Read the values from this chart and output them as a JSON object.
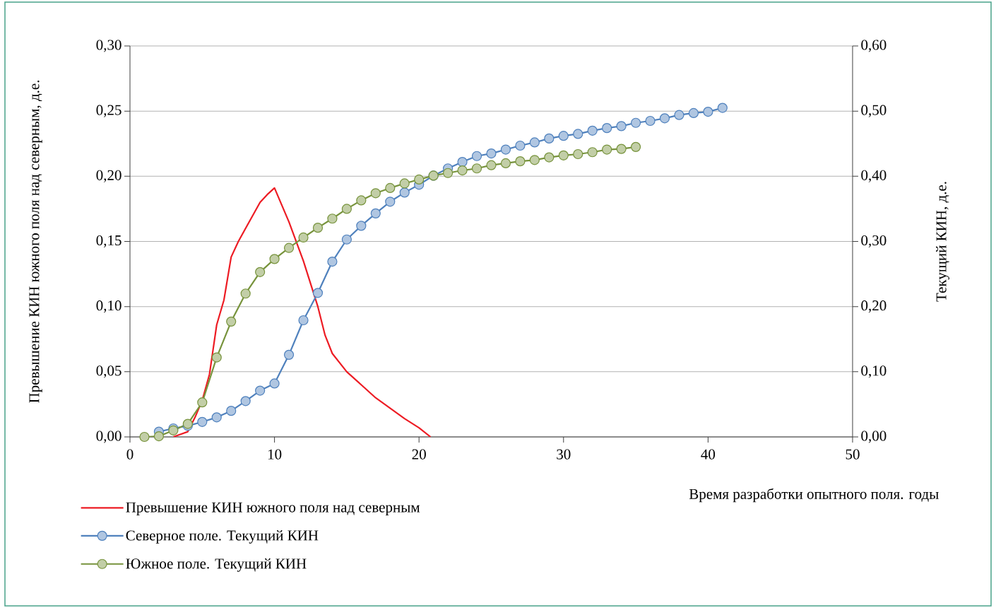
{
  "chart_data": {
    "type": "line",
    "xlabel": "Время разработки опытного поля. годы",
    "ylabel": "Превышение КИН южного поля над северным, д.е.",
    "y2label": "Текущий КИН, д.е.",
    "xlim": [
      0,
      50
    ],
    "xticks": [
      0,
      10,
      20,
      30,
      40,
      50
    ],
    "ylim": [
      0,
      0.3
    ],
    "yticks": [
      {
        "value": 0,
        "label": "0,00"
      },
      {
        "value": 0.05,
        "label": "0,05"
      },
      {
        "value": 0.1,
        "label": "0,10"
      },
      {
        "value": 0.15,
        "label": "0,15"
      },
      {
        "value": 0.2,
        "label": "0,20"
      },
      {
        "value": 0.25,
        "label": "0,25"
      },
      {
        "value": 0.3,
        "label": "0,30"
      }
    ],
    "y2lim": [
      0,
      0.6
    ],
    "y2ticks": [
      {
        "value": 0,
        "label": "0,00"
      },
      {
        "value": 0.1,
        "label": "0,10"
      },
      {
        "value": 0.2,
        "label": "0,20"
      },
      {
        "value": 0.3,
        "label": "0,30"
      },
      {
        "value": 0.4,
        "label": "0,40"
      },
      {
        "value": 0.5,
        "label": "0,50"
      },
      {
        "value": 0.6,
        "label": "0,60"
      }
    ],
    "grid": "y",
    "legend": "bottom left",
    "series": [
      {
        "name": "Превышение КИН южного поля над северным",
        "color": "#ed1c24",
        "marker": "none",
        "x": [
          3,
          4,
          4.5,
          5,
          5.5,
          6,
          6.5,
          7,
          7.5,
          8,
          9,
          9.5,
          10,
          10.5,
          11,
          11.5,
          12,
          13,
          13.5,
          14,
          15,
          16,
          17,
          18,
          19,
          20,
          20.8
        ],
        "values": [
          0,
          0.004,
          0.015,
          0.028,
          0.048,
          0.086,
          0.105,
          0.138,
          0.15,
          0.16,
          0.18,
          0.186,
          0.191,
          0.178,
          0.165,
          0.15,
          0.135,
          0.1,
          0.078,
          0.064,
          0.05,
          0.04,
          0.03,
          0.022,
          0.014,
          0.007,
          0
        ]
      },
      {
        "name": "Северное поле. Текущий КИН",
        "color": "#4f81bd",
        "marker": "circle",
        "axis": "y2",
        "x": [
          2,
          3,
          4,
          5,
          6,
          7,
          8,
          9,
          10,
          11,
          12,
          13,
          14,
          15,
          16,
          17,
          18,
          19,
          20,
          21,
          22,
          23,
          24,
          25,
          26,
          27,
          28,
          29,
          30,
          31,
          32,
          33,
          34,
          35,
          36,
          37,
          38,
          39,
          40,
          41
        ],
        "values": [
          0.008,
          0.013,
          0.017,
          0.023,
          0.03,
          0.04,
          0.055,
          0.071,
          0.082,
          0.126,
          0.179,
          0.221,
          0.269,
          0.303,
          0.324,
          0.343,
          0.361,
          0.375,
          0.387,
          0.401,
          0.412,
          0.422,
          0.431,
          0.435,
          0.441,
          0.447,
          0.452,
          0.458,
          0.462,
          0.465,
          0.47,
          0.474,
          0.477,
          0.482,
          0.485,
          0.489,
          0.494,
          0.497,
          0.499,
          0.505
        ]
      },
      {
        "name": "Южное поле. Текущий КИН",
        "color": "#77933c",
        "marker": "circle",
        "axis": "y2",
        "x": [
          1,
          2,
          3,
          4,
          5,
          6,
          7,
          8,
          9,
          10,
          11,
          12,
          13,
          14,
          15,
          16,
          17,
          18,
          19,
          20,
          21,
          22,
          23,
          24,
          25,
          26,
          27,
          28,
          29,
          30,
          31,
          32,
          33,
          34,
          35
        ],
        "values": [
          0,
          0.001,
          0.01,
          0.02,
          0.053,
          0.122,
          0.177,
          0.22,
          0.253,
          0.273,
          0.29,
          0.306,
          0.321,
          0.335,
          0.35,
          0.363,
          0.374,
          0.382,
          0.389,
          0.395,
          0.401,
          0.405,
          0.409,
          0.412,
          0.417,
          0.42,
          0.423,
          0.425,
          0.429,
          0.432,
          0.434,
          0.437,
          0.441,
          0.442,
          0.445
        ]
      }
    ]
  }
}
